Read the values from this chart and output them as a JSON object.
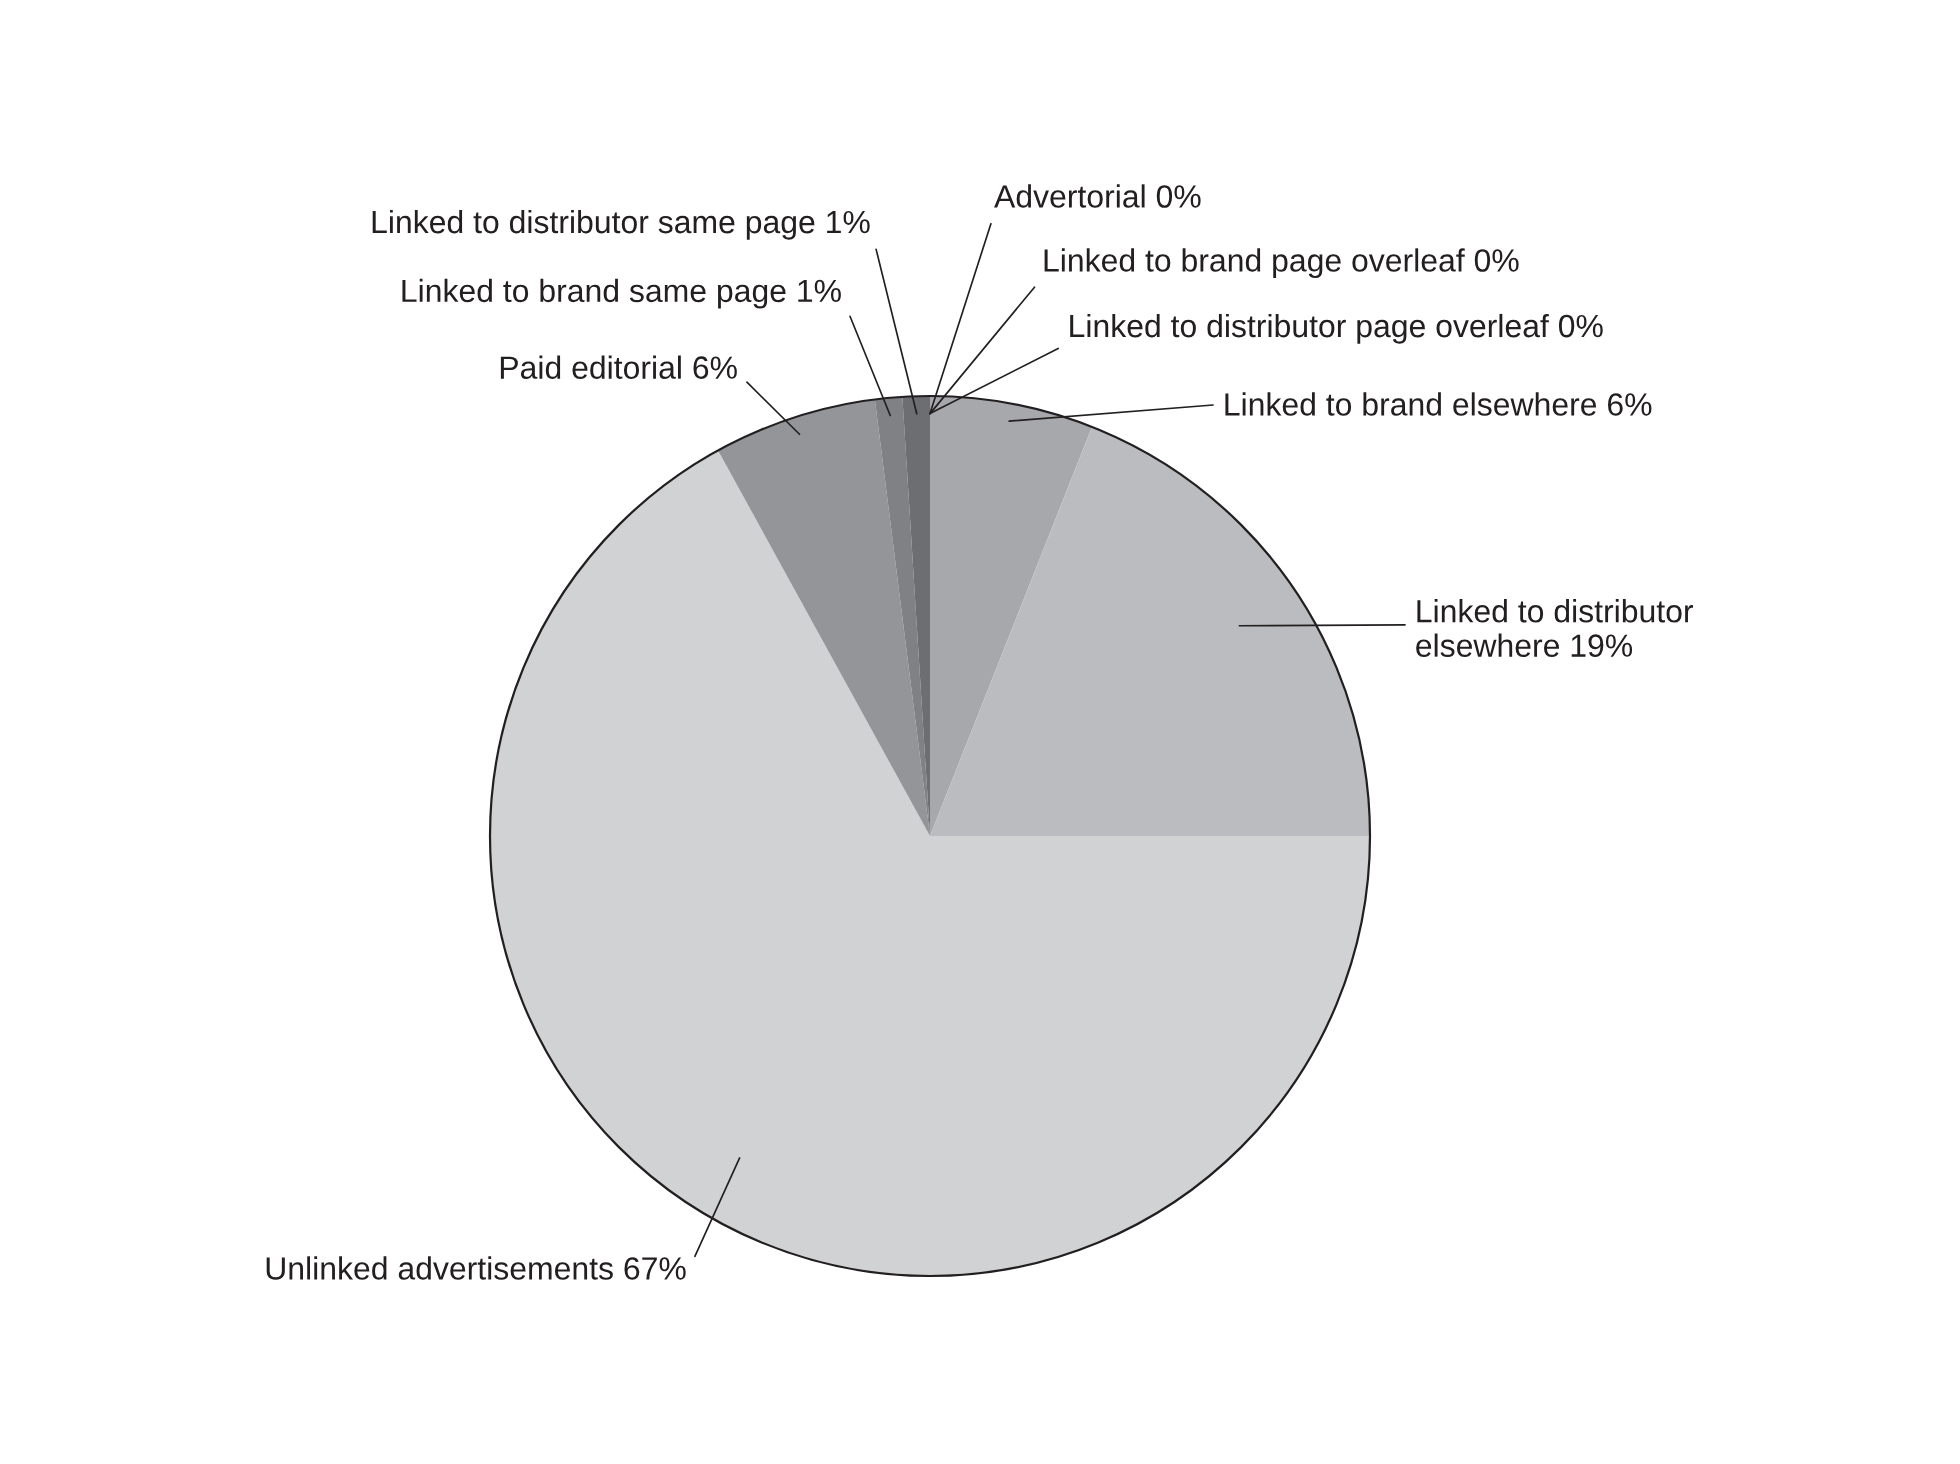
{
  "chart_data": {
    "type": "pie",
    "categories": [
      "Advertorial",
      "Linked to brand page overleaf",
      "Linked to distributor page overleaf",
      "Linked to brand elsewhere",
      "Linked to distributor elsewhere",
      "Unlinked advertisements",
      "Paid editorial",
      "Linked to brand same page",
      "Linked to distributor same page"
    ],
    "values": [
      0,
      0,
      0,
      6,
      19,
      67,
      6,
      1,
      1
    ],
    "value_labels": [
      "0%",
      "0%",
      "0%",
      "6%",
      "19%",
      "67%",
      "6%",
      "1%",
      "1%"
    ],
    "colors": [
      "#4a4a4c",
      "#2b2b2d",
      "#111113",
      "#a7a8ab",
      "#bbbcbf",
      "#d1d2d4",
      "#939598",
      "#7f8184",
      "#6d6e71"
    ],
    "legend": false
  }
}
